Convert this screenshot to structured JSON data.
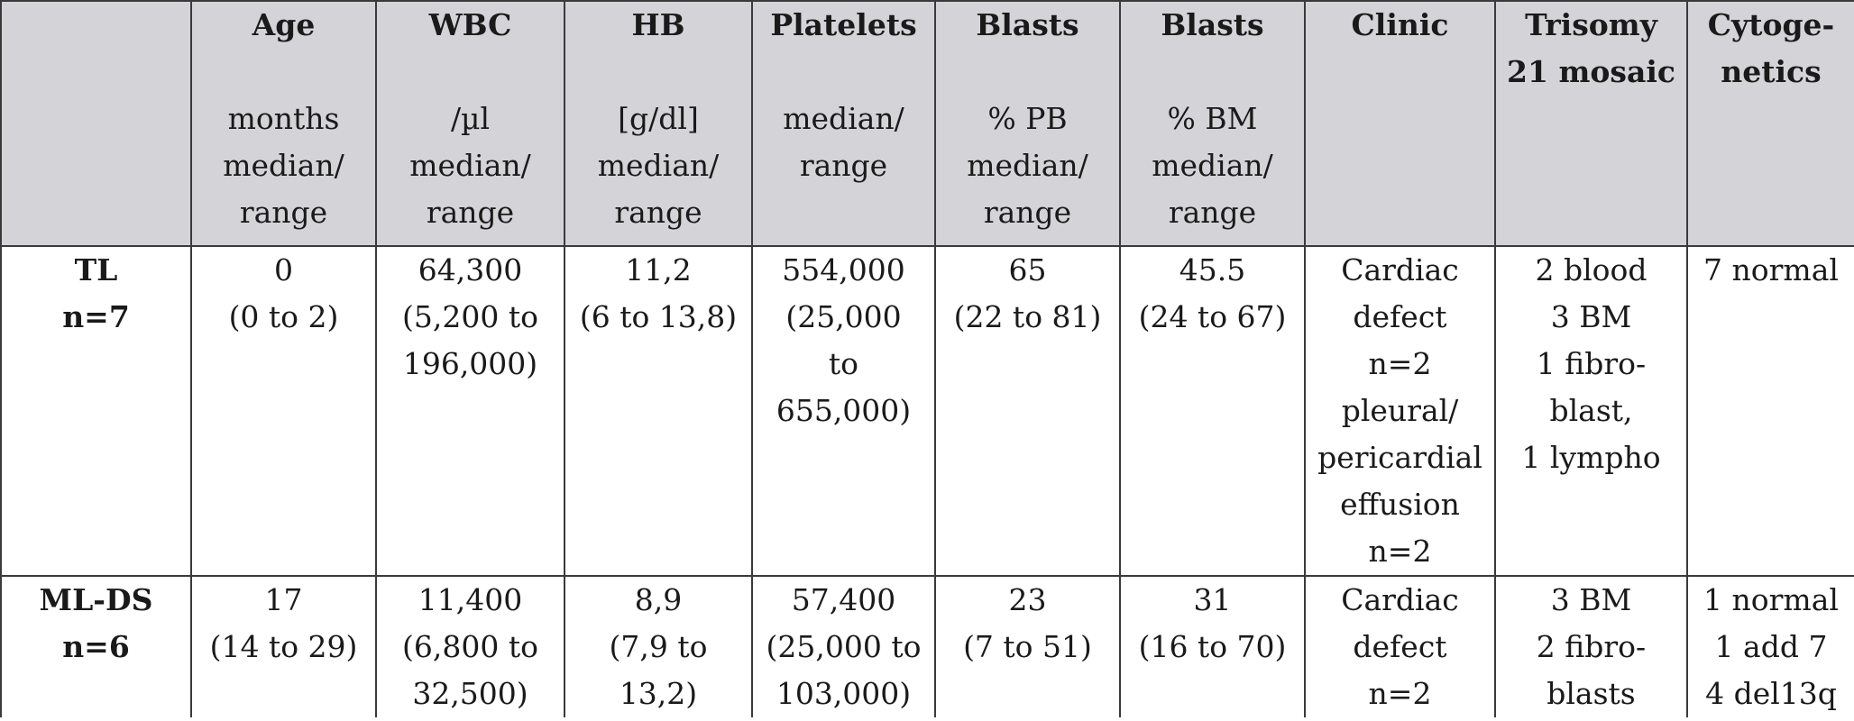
{
  "header": {
    "group": {
      "title": ""
    },
    "age": {
      "title": "Age",
      "sub": [
        "months",
        "median/",
        "range"
      ]
    },
    "wbc": {
      "title": "WBC",
      "sub": [
        "/µl",
        "median/",
        "range"
      ]
    },
    "hb": {
      "title": "HB",
      "sub": [
        "[g/dl]",
        "median/",
        "range"
      ]
    },
    "platelets": {
      "title": "Platelets",
      "sub": [
        "median/",
        "range"
      ]
    },
    "blasts_pb": {
      "title": "Blasts",
      "sub": [
        "% PB",
        "median/",
        "range"
      ]
    },
    "blasts_bm": {
      "title": "Blasts",
      "sub": [
        "% BM",
        "median/",
        "range"
      ]
    },
    "clinic": {
      "title": "Clinic"
    },
    "trisomy": {
      "title_lines": [
        "Trisomy",
        "21 mosaic"
      ]
    },
    "cytogenetics": {
      "title_lines": [
        "Cytoge-",
        "netics"
      ]
    }
  },
  "rows": [
    {
      "group": [
        "TL",
        "n=7"
      ],
      "age": [
        "0",
        "(0 to 2)"
      ],
      "wbc": [
        "64,300",
        "(5,200 to",
        "196,000)"
      ],
      "hb": [
        "11,2",
        "(6 to 13,8)"
      ],
      "platelets": [
        "554,000",
        "(25,000",
        "to",
        "655,000)"
      ],
      "blasts_pb": [
        "65",
        "(22 to 81)"
      ],
      "blasts_bm": [
        "45.5",
        "(24 to 67)"
      ],
      "clinic": [
        "Cardiac",
        "defect",
        "n=2",
        "pleural/",
        "pericardial",
        "effusion",
        "n=2"
      ],
      "trisomy": [
        "2 blood",
        "3 BM",
        "1 fibro-",
        "blast,",
        "1 lympho"
      ],
      "cytogenetics": [
        "7 normal"
      ]
    },
    {
      "group": [
        "ML-DS",
        "n=6"
      ],
      "age": [
        "17",
        "(14 to 29)"
      ],
      "wbc": [
        "11,400",
        "(6,800 to",
        "32,500)"
      ],
      "hb": [
        "8,9",
        "(7,9 to",
        "13,2)"
      ],
      "platelets": [
        "57,400",
        "(25,000 to",
        "103,000)"
      ],
      "blasts_pb": [
        "23",
        "(7 to 51)"
      ],
      "blasts_bm": [
        "31",
        "(16 to 70)"
      ],
      "clinic": [
        "Cardiac",
        "defect",
        "n=2"
      ],
      "trisomy": [
        "3 BM",
        "2 fibro-",
        "blasts"
      ],
      "cytogenetics": [
        "1 normal",
        "1 add 7",
        "4 del13q"
      ]
    }
  ]
}
